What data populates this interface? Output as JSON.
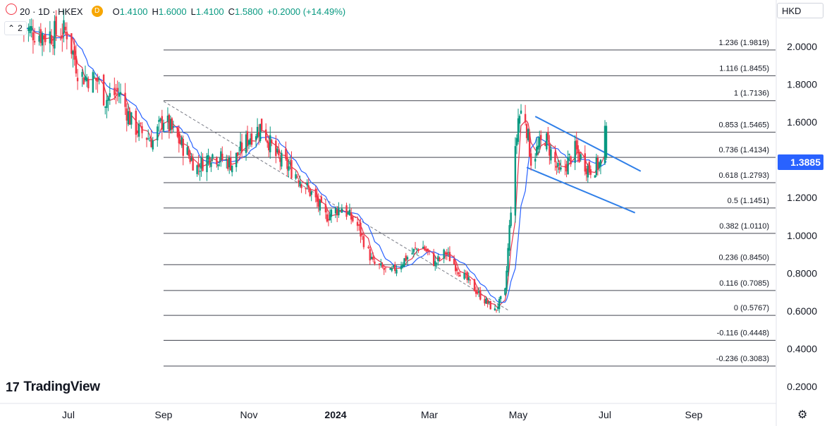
{
  "legend": {
    "symbol": "20 · 1D · HKEX",
    "badge": "D",
    "open_key": "O",
    "open": "1.4100",
    "high_key": "H",
    "high": "1.6000",
    "low_key": "L",
    "low": "1.4100",
    "close_key": "C",
    "close": "1.5800",
    "change": "+0.2000 (+14.49%)",
    "indicator_count": "2",
    "collapse_icon": "chevron-up-icon"
  },
  "currency": "HKD",
  "last_price": "1.3885",
  "brand": "TradingView",
  "colors": {
    "up": "#089981",
    "down": "#f23645",
    "ma_fast": "#e5354e",
    "ma_slow": "#2962ff",
    "channel": "#2f7fe8",
    "price_tag": "#2962ff",
    "fib_line": "#131722"
  },
  "chart_data": {
    "type": "candlestick",
    "y_axis": {
      "min": 0.2,
      "max": 2.0,
      "ticks": [
        "2.0000",
        "1.8000",
        "1.6000",
        "1.4000",
        "1.2000",
        "1.0000",
        "0.8000",
        "0.6000",
        "0.4000",
        "0.2000"
      ]
    },
    "x_axis": {
      "ticks": [
        "Jul",
        "Sep",
        "Nov",
        "2024",
        "Mar",
        "May",
        "Jul",
        "Sep"
      ]
    },
    "fibonacci": [
      {
        "label": "1.236 (1.9819)",
        "value": 1.9819
      },
      {
        "label": "1.116 (1.8455)",
        "value": 1.8455
      },
      {
        "label": "1 (1.7136)",
        "value": 1.7136
      },
      {
        "label": "0.853 (1.5465)",
        "value": 1.5465
      },
      {
        "label": "0.736 (1.4134)",
        "value": 1.4134
      },
      {
        "label": "0.618 (1.2793)",
        "value": 1.2793
      },
      {
        "label": "0.5 (1.1451)",
        "value": 1.1451
      },
      {
        "label": "0.382 (1.0110)",
        "value": 1.011
      },
      {
        "label": "0.236 (0.8450)",
        "value": 0.845
      },
      {
        "label": "0.116 (0.7085)",
        "value": 0.7085
      },
      {
        "label": "0 (0.5767)",
        "value": 0.5767
      },
      {
        "label": "-0.116 (0.4448)",
        "value": 0.4448
      },
      {
        "label": "-0.236 (0.3083)",
        "value": 0.3083
      }
    ],
    "close_path": [
      {
        "t": "2023-06-01",
        "v": 2.1
      },
      {
        "t": "2023-06-15",
        "v": 2.06
      },
      {
        "t": "2023-06-30",
        "v": 2.08
      },
      {
        "t": "2023-07-08",
        "v": 1.85
      },
      {
        "t": "2023-07-20",
        "v": 1.82
      },
      {
        "t": "2023-07-25",
        "v": 1.72
      },
      {
        "t": "2023-08-03",
        "v": 1.76
      },
      {
        "t": "2023-08-12",
        "v": 1.58
      },
      {
        "t": "2023-08-25",
        "v": 1.5
      },
      {
        "t": "2023-09-01",
        "v": 1.62
      },
      {
        "t": "2023-09-12",
        "v": 1.5
      },
      {
        "t": "2023-09-25",
        "v": 1.36
      },
      {
        "t": "2023-10-05",
        "v": 1.43
      },
      {
        "t": "2023-10-20",
        "v": 1.38
      },
      {
        "t": "2023-11-01",
        "v": 1.52
      },
      {
        "t": "2023-11-10",
        "v": 1.58
      },
      {
        "t": "2023-11-20",
        "v": 1.42
      },
      {
        "t": "2023-12-05",
        "v": 1.32
      },
      {
        "t": "2023-12-15",
        "v": 1.22
      },
      {
        "t": "2023-12-25",
        "v": 1.1
      },
      {
        "t": "2024-01-05",
        "v": 1.15
      },
      {
        "t": "2024-01-15",
        "v": 1.05
      },
      {
        "t": "2024-01-25",
        "v": 0.85
      },
      {
        "t": "2024-02-05",
        "v": 0.8
      },
      {
        "t": "2024-02-15",
        "v": 0.88
      },
      {
        "t": "2024-02-25",
        "v": 0.95
      },
      {
        "t": "2024-03-05",
        "v": 0.85
      },
      {
        "t": "2024-03-12",
        "v": 0.91
      },
      {
        "t": "2024-03-25",
        "v": 0.78
      },
      {
        "t": "2024-04-05",
        "v": 0.68
      },
      {
        "t": "2024-04-15",
        "v": 0.6
      },
      {
        "t": "2024-04-22",
        "v": 0.7
      },
      {
        "t": "2024-04-26",
        "v": 1.15
      },
      {
        "t": "2024-05-01",
        "v": 1.62
      },
      {
        "t": "2024-05-05",
        "v": 1.68
      },
      {
        "t": "2024-05-10",
        "v": 1.4
      },
      {
        "t": "2024-05-20",
        "v": 1.52
      },
      {
        "t": "2024-05-30",
        "v": 1.32
      },
      {
        "t": "2024-06-10",
        "v": 1.45
      },
      {
        "t": "2024-06-20",
        "v": 1.35
      },
      {
        "t": "2024-06-28",
        "v": 1.38
      },
      {
        "t": "2024-07-02",
        "v": 1.58
      }
    ],
    "channel": [
      {
        "t1": "2024-05-13",
        "v1": 1.63,
        "t2": "2024-07-26",
        "v2": 1.34
      },
      {
        "t1": "2024-05-07",
        "v1": 1.36,
        "t2": "2024-07-22",
        "v2": 1.12
      }
    ],
    "trend_line": {
      "t1": "2023-09-01",
      "v1": 1.71,
      "t2": "2024-04-25",
      "v2": 0.6
    }
  }
}
